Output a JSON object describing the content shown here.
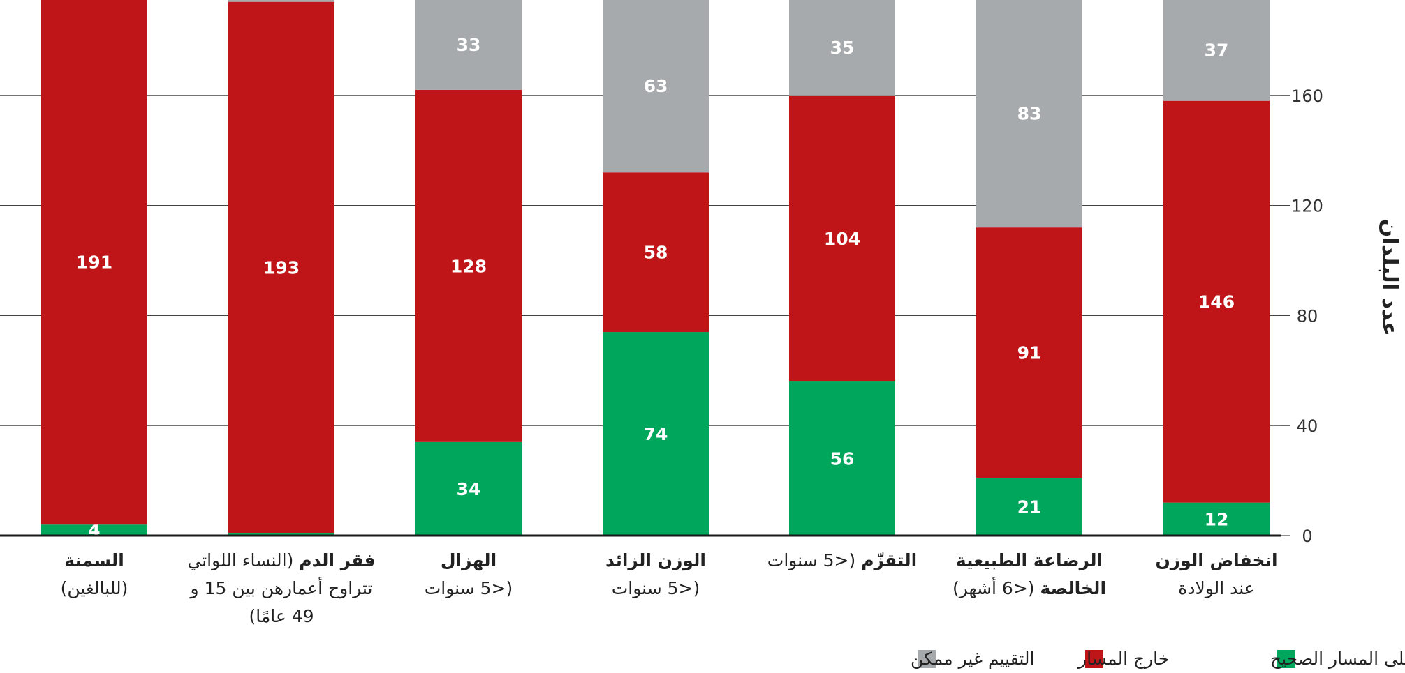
{
  "chart_data": {
    "type": "bar",
    "stacked": true,
    "ylabel": "عدد البلدان",
    "ylim": [
      0,
      190
    ],
    "yticks": [
      0,
      40,
      80,
      120,
      160
    ],
    "grid": true,
    "y_axis_side": "right",
    "legend_position": "bottom-right",
    "categories": [
      {
        "bold": "السمنة",
        "rest": "",
        "line2": "(للبالغين)",
        "line3": ""
      },
      {
        "bold": "فقر الدم",
        "rest": " (النساء اللواتي",
        "line2": "تتراوح أعمارهن بين 15 و",
        "line3": "49 عامًا)"
      },
      {
        "bold": "الهزال",
        "rest": "",
        "line2": "(<5 سنوات",
        "line3": ""
      },
      {
        "bold": "الوزن الزائد",
        "rest": "",
        "line2": "(<5 سنوات",
        "line3": ""
      },
      {
        "bold": "التقزّم",
        "rest": " (<5 سنوات",
        "line2": "",
        "line3": ""
      },
      {
        "bold": "الرضاعة الطبيعية",
        "rest": "",
        "line2": "الخالصة",
        "line2_rest": " (<6 أشهر)",
        "line3": ""
      },
      {
        "bold": "انخفاض الوزن",
        "rest": "",
        "line2": "عند الولادة",
        "line3": ""
      }
    ],
    "series": [
      {
        "name": "على المسار الصحيح",
        "color": "#00a65c",
        "values": [
          4,
          1,
          34,
          74,
          56,
          21,
          12
        ]
      },
      {
        "name": "خارج المسار",
        "color": "#c01518",
        "values": [
          191,
          193,
          128,
          58,
          104,
          91,
          146
        ]
      },
      {
        "name": "التقييم غير ممكن",
        "color": "#a7aaad",
        "values": [
          0,
          1,
          33,
          63,
          35,
          83,
          37
        ]
      }
    ]
  }
}
